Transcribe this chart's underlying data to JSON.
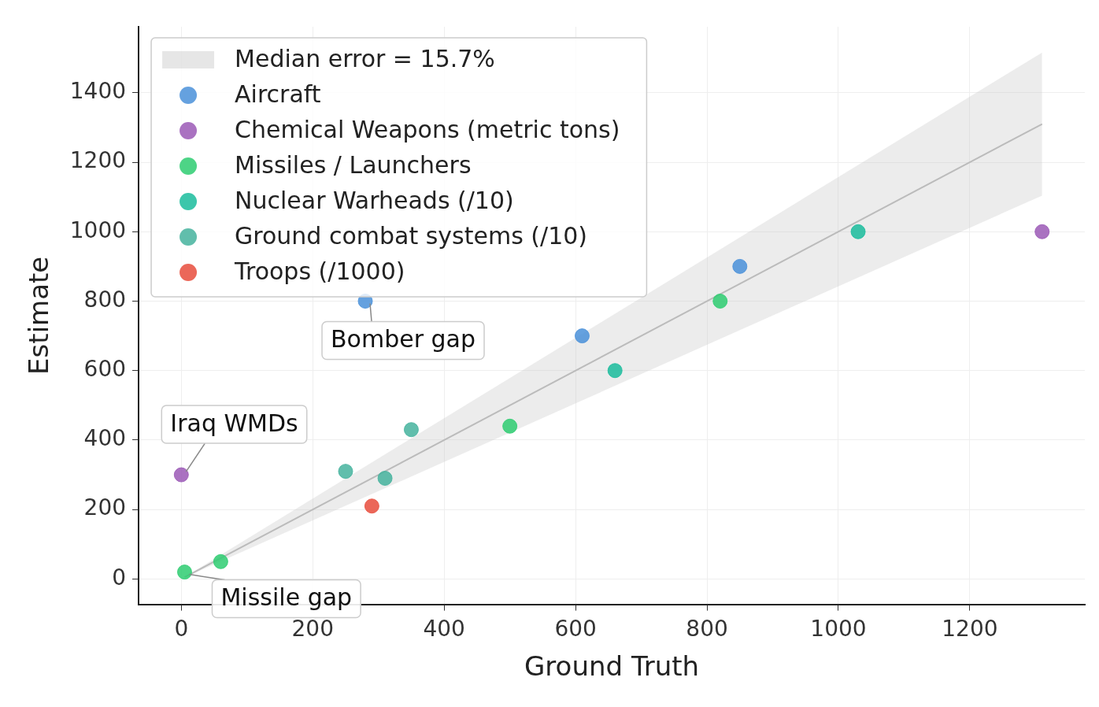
{
  "chart_data": {
    "type": "scatter",
    "xlabel": "Ground Truth",
    "ylabel": "Estimate",
    "xlim": [
      -65,
      1375
    ],
    "ylim": [
      -73,
      1590
    ],
    "xticks": [
      0,
      200,
      400,
      600,
      800,
      1000,
      1200
    ],
    "yticks": [
      0,
      200,
      400,
      600,
      800,
      1000,
      1200,
      1400
    ],
    "grid": true,
    "legend": "top left",
    "marker": "circle",
    "series": [
      {
        "type": "line",
        "name": "Median error = 15.7%",
        "color": "#bbbbbb",
        "marker": "none",
        "x": [
          5,
          1310
        ],
        "values": [
          5,
          1310
        ],
        "lower": [
          4.2,
          1104
        ],
        "upper": [
          5.8,
          1516
        ]
      },
      {
        "name": "Aircraft",
        "color": "#4a90d9",
        "x": [
          610,
          850,
          280
        ],
        "values": [
          700,
          900,
          800
        ]
      },
      {
        "name": "Chemical Weapons (metric tons)",
        "color": "#9b59b6",
        "x": [
          0,
          1310
        ],
        "values": [
          300,
          1000
        ]
      },
      {
        "name": "Missiles / Launchers",
        "color": "#2ecc71",
        "x": [
          5,
          60,
          500,
          820
        ],
        "values": [
          20,
          50,
          440,
          800
        ]
      },
      {
        "name": "Nuclear Warheads (/10)",
        "color": "#1abc9c",
        "x": [
          660,
          1030
        ],
        "values": [
          600,
          1000
        ]
      },
      {
        "name": "Ground combat systems (/10)",
        "color": "#45b39d",
        "x": [
          250,
          310,
          350
        ],
        "values": [
          310,
          290,
          430
        ]
      },
      {
        "name": "Troops (/1000)",
        "color": "#e74c3c",
        "x": [
          290
        ],
        "values": [
          210
        ]
      }
    ],
    "annotations": [
      {
        "text": "Bomber gap",
        "x": 280,
        "y": 800
      },
      {
        "text": "Iraq WMDs",
        "x": 0,
        "y": 300
      },
      {
        "text": "Missile gap",
        "x": 5,
        "y": 20
      }
    ]
  }
}
